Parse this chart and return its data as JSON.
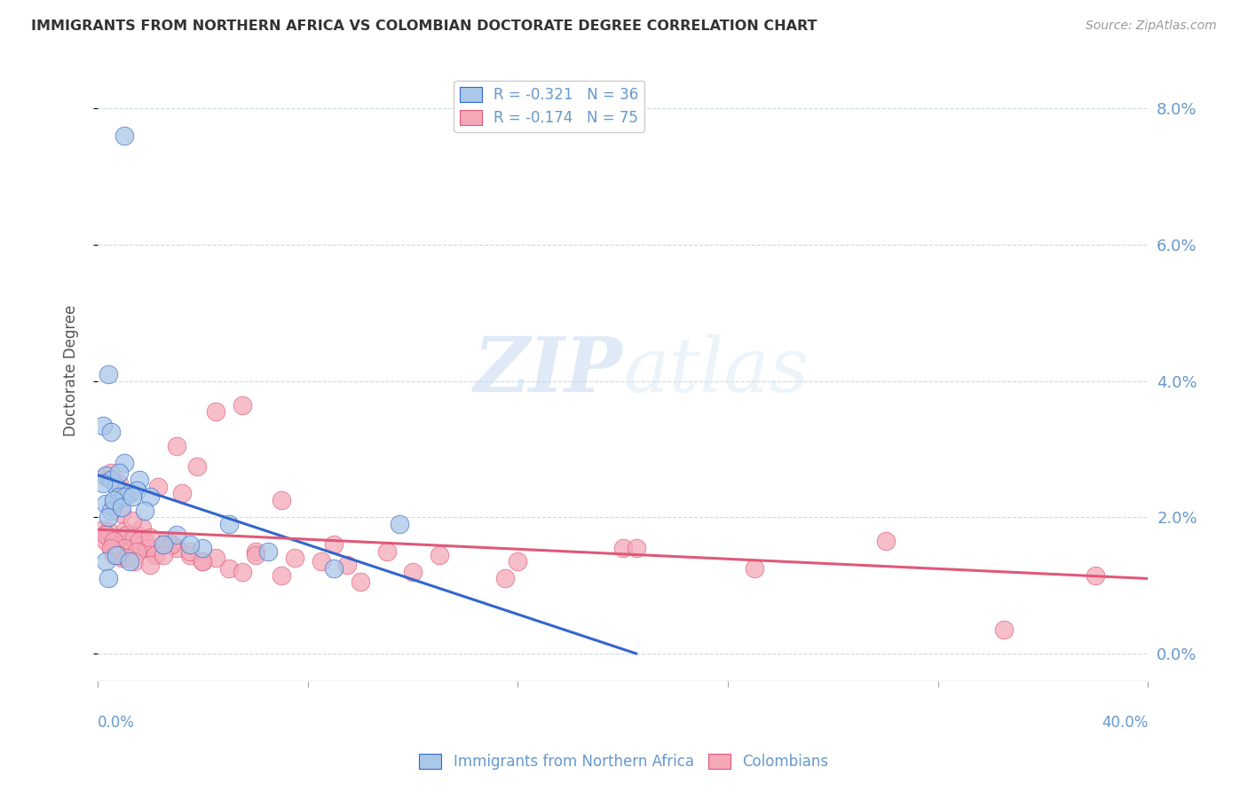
{
  "title": "IMMIGRANTS FROM NORTHERN AFRICA VS COLOMBIAN DOCTORATE DEGREE CORRELATION CHART",
  "source": "Source: ZipAtlas.com",
  "ylabel": "Doctorate Degree",
  "ytick_values": [
    0.0,
    2.0,
    4.0,
    6.0,
    8.0
  ],
  "xlim": [
    0.0,
    40.0
  ],
  "ylim": [
    -0.4,
    8.7
  ],
  "legend1_label": "R = -0.321   N = 36",
  "legend2_label": "R = -0.174   N = 75",
  "color_blue": "#aac8e8",
  "color_pink": "#f4a8b8",
  "line_blue": "#3366cc",
  "line_pink": "#e05878",
  "axis_color": "#6699cc",
  "blue_line_x0": 0.0,
  "blue_line_y0": 2.62,
  "blue_line_x1": 20.5,
  "blue_line_y1": 0.0,
  "pink_line_x0": 0.0,
  "pink_line_y0": 1.82,
  "pink_line_x1": 40.0,
  "pink_line_y1": 1.1,
  "blue_scatter_x": [
    1.0,
    0.4,
    0.2,
    0.5,
    1.0,
    0.3,
    0.5,
    0.7,
    0.8,
    0.6,
    1.6,
    1.2,
    0.3,
    0.5,
    0.4,
    0.8,
    1.5,
    1.0,
    2.0,
    3.0,
    4.0,
    5.0,
    6.5,
    9.0,
    11.5,
    0.2,
    0.6,
    0.9,
    1.3,
    1.8,
    2.5,
    3.5,
    0.3,
    0.7,
    1.2,
    0.4
  ],
  "blue_scatter_y": [
    7.6,
    4.1,
    3.35,
    3.25,
    2.8,
    2.62,
    2.55,
    2.45,
    2.3,
    2.2,
    2.55,
    2.35,
    2.2,
    2.1,
    2.0,
    2.65,
    2.4,
    2.3,
    2.3,
    1.75,
    1.55,
    1.9,
    1.5,
    1.25,
    1.9,
    2.5,
    2.25,
    2.15,
    2.3,
    2.1,
    1.6,
    1.6,
    1.35,
    1.45,
    1.35,
    1.1
  ],
  "pink_scatter_x": [
    0.2,
    0.4,
    0.5,
    0.6,
    0.8,
    1.0,
    0.3,
    0.7,
    0.9,
    1.2,
    1.5,
    1.8,
    2.0,
    2.3,
    2.8,
    3.2,
    0.3,
    0.5,
    0.8,
    1.1,
    1.4,
    1.7,
    2.5,
    3.0,
    3.8,
    4.5,
    5.5,
    7.0,
    9.0,
    11.0,
    13.0,
    16.0,
    20.0,
    25.0,
    30.0,
    34.5,
    38.0,
    0.4,
    0.6,
    0.9,
    1.3,
    1.6,
    1.9,
    2.2,
    2.6,
    3.0,
    3.5,
    4.0,
    5.0,
    6.0,
    7.5,
    9.5,
    12.0,
    15.5,
    0.3,
    0.6,
    1.0,
    1.5,
    2.0,
    2.8,
    3.5,
    4.5,
    6.0,
    8.5,
    0.5,
    0.8,
    1.1,
    1.4,
    2.0,
    2.5,
    4.0,
    5.5,
    7.0,
    10.0,
    20.5
  ],
  "pink_scatter_y": [
    1.82,
    1.7,
    1.55,
    1.45,
    1.7,
    1.8,
    1.65,
    1.5,
    1.4,
    1.55,
    1.75,
    1.65,
    1.55,
    2.45,
    1.6,
    2.35,
    2.6,
    2.65,
    2.5,
    1.75,
    1.7,
    1.85,
    1.6,
    3.05,
    2.75,
    3.55,
    3.65,
    2.25,
    1.6,
    1.5,
    1.45,
    1.35,
    1.55,
    1.25,
    1.65,
    0.35,
    1.15,
    1.8,
    2.15,
    2.05,
    1.95,
    1.65,
    1.55,
    1.45,
    1.65,
    1.55,
    1.45,
    1.35,
    1.25,
    1.5,
    1.4,
    1.3,
    1.2,
    1.1,
    1.75,
    1.65,
    1.55,
    1.5,
    1.7,
    1.6,
    1.5,
    1.4,
    1.45,
    1.35,
    1.55,
    1.45,
    1.4,
    1.35,
    1.3,
    1.45,
    1.35,
    1.2,
    1.15,
    1.05,
    1.55
  ]
}
